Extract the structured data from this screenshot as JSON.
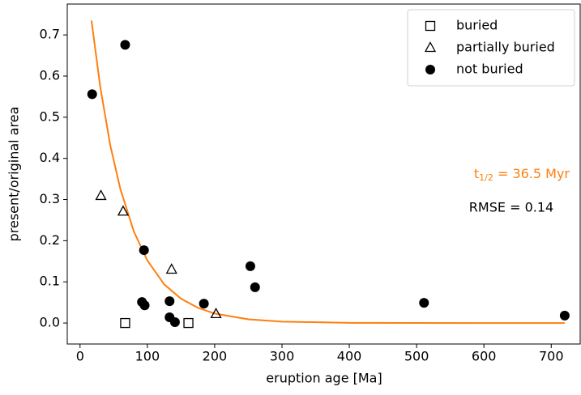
{
  "chart_data": {
    "type": "scatter",
    "xlabel": "eruption age [Ma]",
    "ylabel": "present/original area",
    "xlim": [
      -19,
      743
    ],
    "ylim": [
      -0.051,
      0.775
    ],
    "xticks": [
      0,
      100,
      200,
      300,
      400,
      500,
      600,
      700
    ],
    "yticks": [
      {
        "value": 0,
        "label": "0.0"
      },
      0.1,
      0.2,
      0.3,
      0.4,
      0.5,
      0.6,
      0.7
    ],
    "grid": false,
    "legend": "upper right",
    "series": [
      {
        "name": "buried",
        "marker": "square",
        "color": "#000000",
        "x": [
          67,
          161
        ],
        "values": [
          0.0,
          0.0
        ]
      },
      {
        "name": "partially buried",
        "marker": "triangle",
        "color": "#000000",
        "x": [
          31,
          64,
          136,
          202
        ],
        "values": [
          0.309,
          0.271,
          0.13,
          0.022
        ]
      },
      {
        "name": "not buried",
        "marker": "circle",
        "color": "#000000",
        "x": [
          18,
          67,
          95,
          92,
          96,
          133,
          133,
          141,
          184,
          253,
          260,
          511,
          720
        ],
        "values": [
          0.556,
          0.676,
          0.177,
          0.051,
          0.043,
          0.053,
          0.014,
          0.002,
          0.047,
          0.138,
          0.087,
          0.049,
          0.018
        ]
      }
    ],
    "fit": {
      "color": "#ff7f0e",
      "x": [
        17,
        30,
        45,
        60,
        80,
        100,
        125,
        150,
        175,
        200,
        250,
        300,
        400,
        500,
        600,
        720
      ],
      "values": [
        0.735,
        0.574,
        0.431,
        0.325,
        0.222,
        0.152,
        0.094,
        0.059,
        0.037,
        0.023,
        0.009,
        0.0034,
        0.0005,
        0.0001,
        0,
        0
      ]
    },
    "half_life_label": {
      "base": "t",
      "subscript": "1/2",
      "text": " = 36.5 Myr",
      "color": "#ff7f0e"
    },
    "annotations": [
      {
        "text": "RMSE = 0.14",
        "color": "#ff7f0e"
      }
    ]
  }
}
